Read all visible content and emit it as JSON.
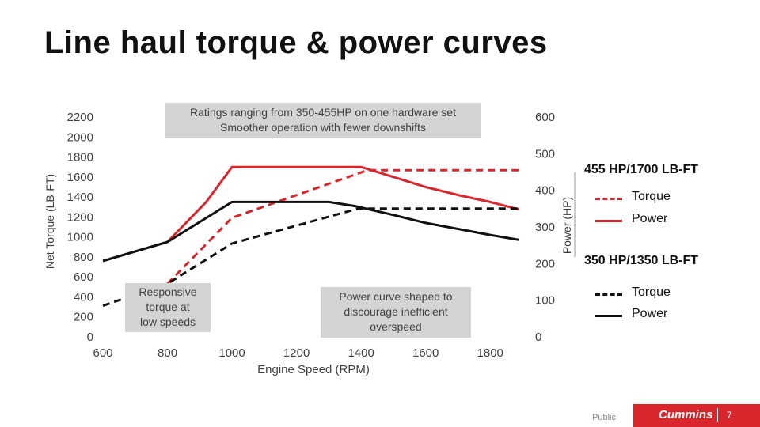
{
  "page": {
    "title": "Line haul torque & power curves",
    "callouts": {
      "top": [
        "Ratings ranging from 350-455HP on one hardware set",
        "Smoother operation with fewer downshifts"
      ],
      "left": [
        "Responsive",
        "torque at",
        "low speeds"
      ],
      "mid": [
        "Power curve shaped to",
        "discourage inefficient",
        "overspeed"
      ]
    },
    "legend": {
      "group1": {
        "heading": "455 HP/1700 LB-FT",
        "torque": "Torque",
        "power": "Power",
        "color": "#d8262c"
      },
      "group2": {
        "heading": "350 HP/1350 LB-FT",
        "torque": "Torque",
        "power": "Power",
        "color": "#111111"
      }
    },
    "footer": {
      "classification": "Public",
      "brand": "Cummins",
      "page_number": "7"
    }
  },
  "chart_data": {
    "type": "line",
    "xlabel": "Engine Speed (RPM)",
    "ylabel": "Net Torque (LB-FT)",
    "y2label": "Power (HP)",
    "xlim": [
      600,
      1900
    ],
    "ylim": [
      0,
      2200
    ],
    "y2lim": [
      0,
      600
    ],
    "x_ticks": [
      600,
      800,
      1000,
      1200,
      1400,
      1600,
      1800
    ],
    "y_ticks": [
      0,
      200,
      400,
      600,
      800,
      1000,
      1200,
      1400,
      1600,
      1800,
      2000,
      2200
    ],
    "y2_ticks": [
      0,
      100,
      200,
      300,
      400,
      500,
      600
    ],
    "grid": false,
    "legend_position": "right",
    "series": [
      {
        "name": "Torque",
        "rating": "455 HP/1700 LB-FT",
        "axis": "left",
        "color": "#d8262c",
        "dash": false,
        "x": [
          800,
          920,
          1000,
          1400,
          1420,
          1500,
          1600,
          1700,
          1800,
          1890
        ],
        "y": [
          950,
          1350,
          1700,
          1700,
          1680,
          1600,
          1500,
          1420,
          1350,
          1275
        ]
      },
      {
        "name": "Power",
        "rating": "455 HP/1700 LB-FT",
        "axis": "right",
        "color": "#d8262c",
        "dash": true,
        "x": [
          800,
          1000,
          1420,
          1890
        ],
        "y": [
          145,
          325,
          455,
          455
        ]
      },
      {
        "name": "Torque",
        "rating": "350 HP/1350 LB-FT",
        "axis": "left",
        "color": "#111111",
        "dash": false,
        "x": [
          600,
          800,
          1000,
          1300,
          1380,
          1500,
          1600,
          1700,
          1800,
          1890
        ],
        "y": [
          760,
          950,
          1350,
          1350,
          1310,
          1220,
          1140,
          1080,
          1020,
          970
        ]
      },
      {
        "name": "Power",
        "rating": "350 HP/1350 LB-FT",
        "axis": "right",
        "color": "#111111",
        "dash": true,
        "x": [
          600,
          800,
          1000,
          1390,
          1890
        ],
        "y": [
          85,
          145,
          255,
          350,
          350
        ]
      }
    ]
  }
}
